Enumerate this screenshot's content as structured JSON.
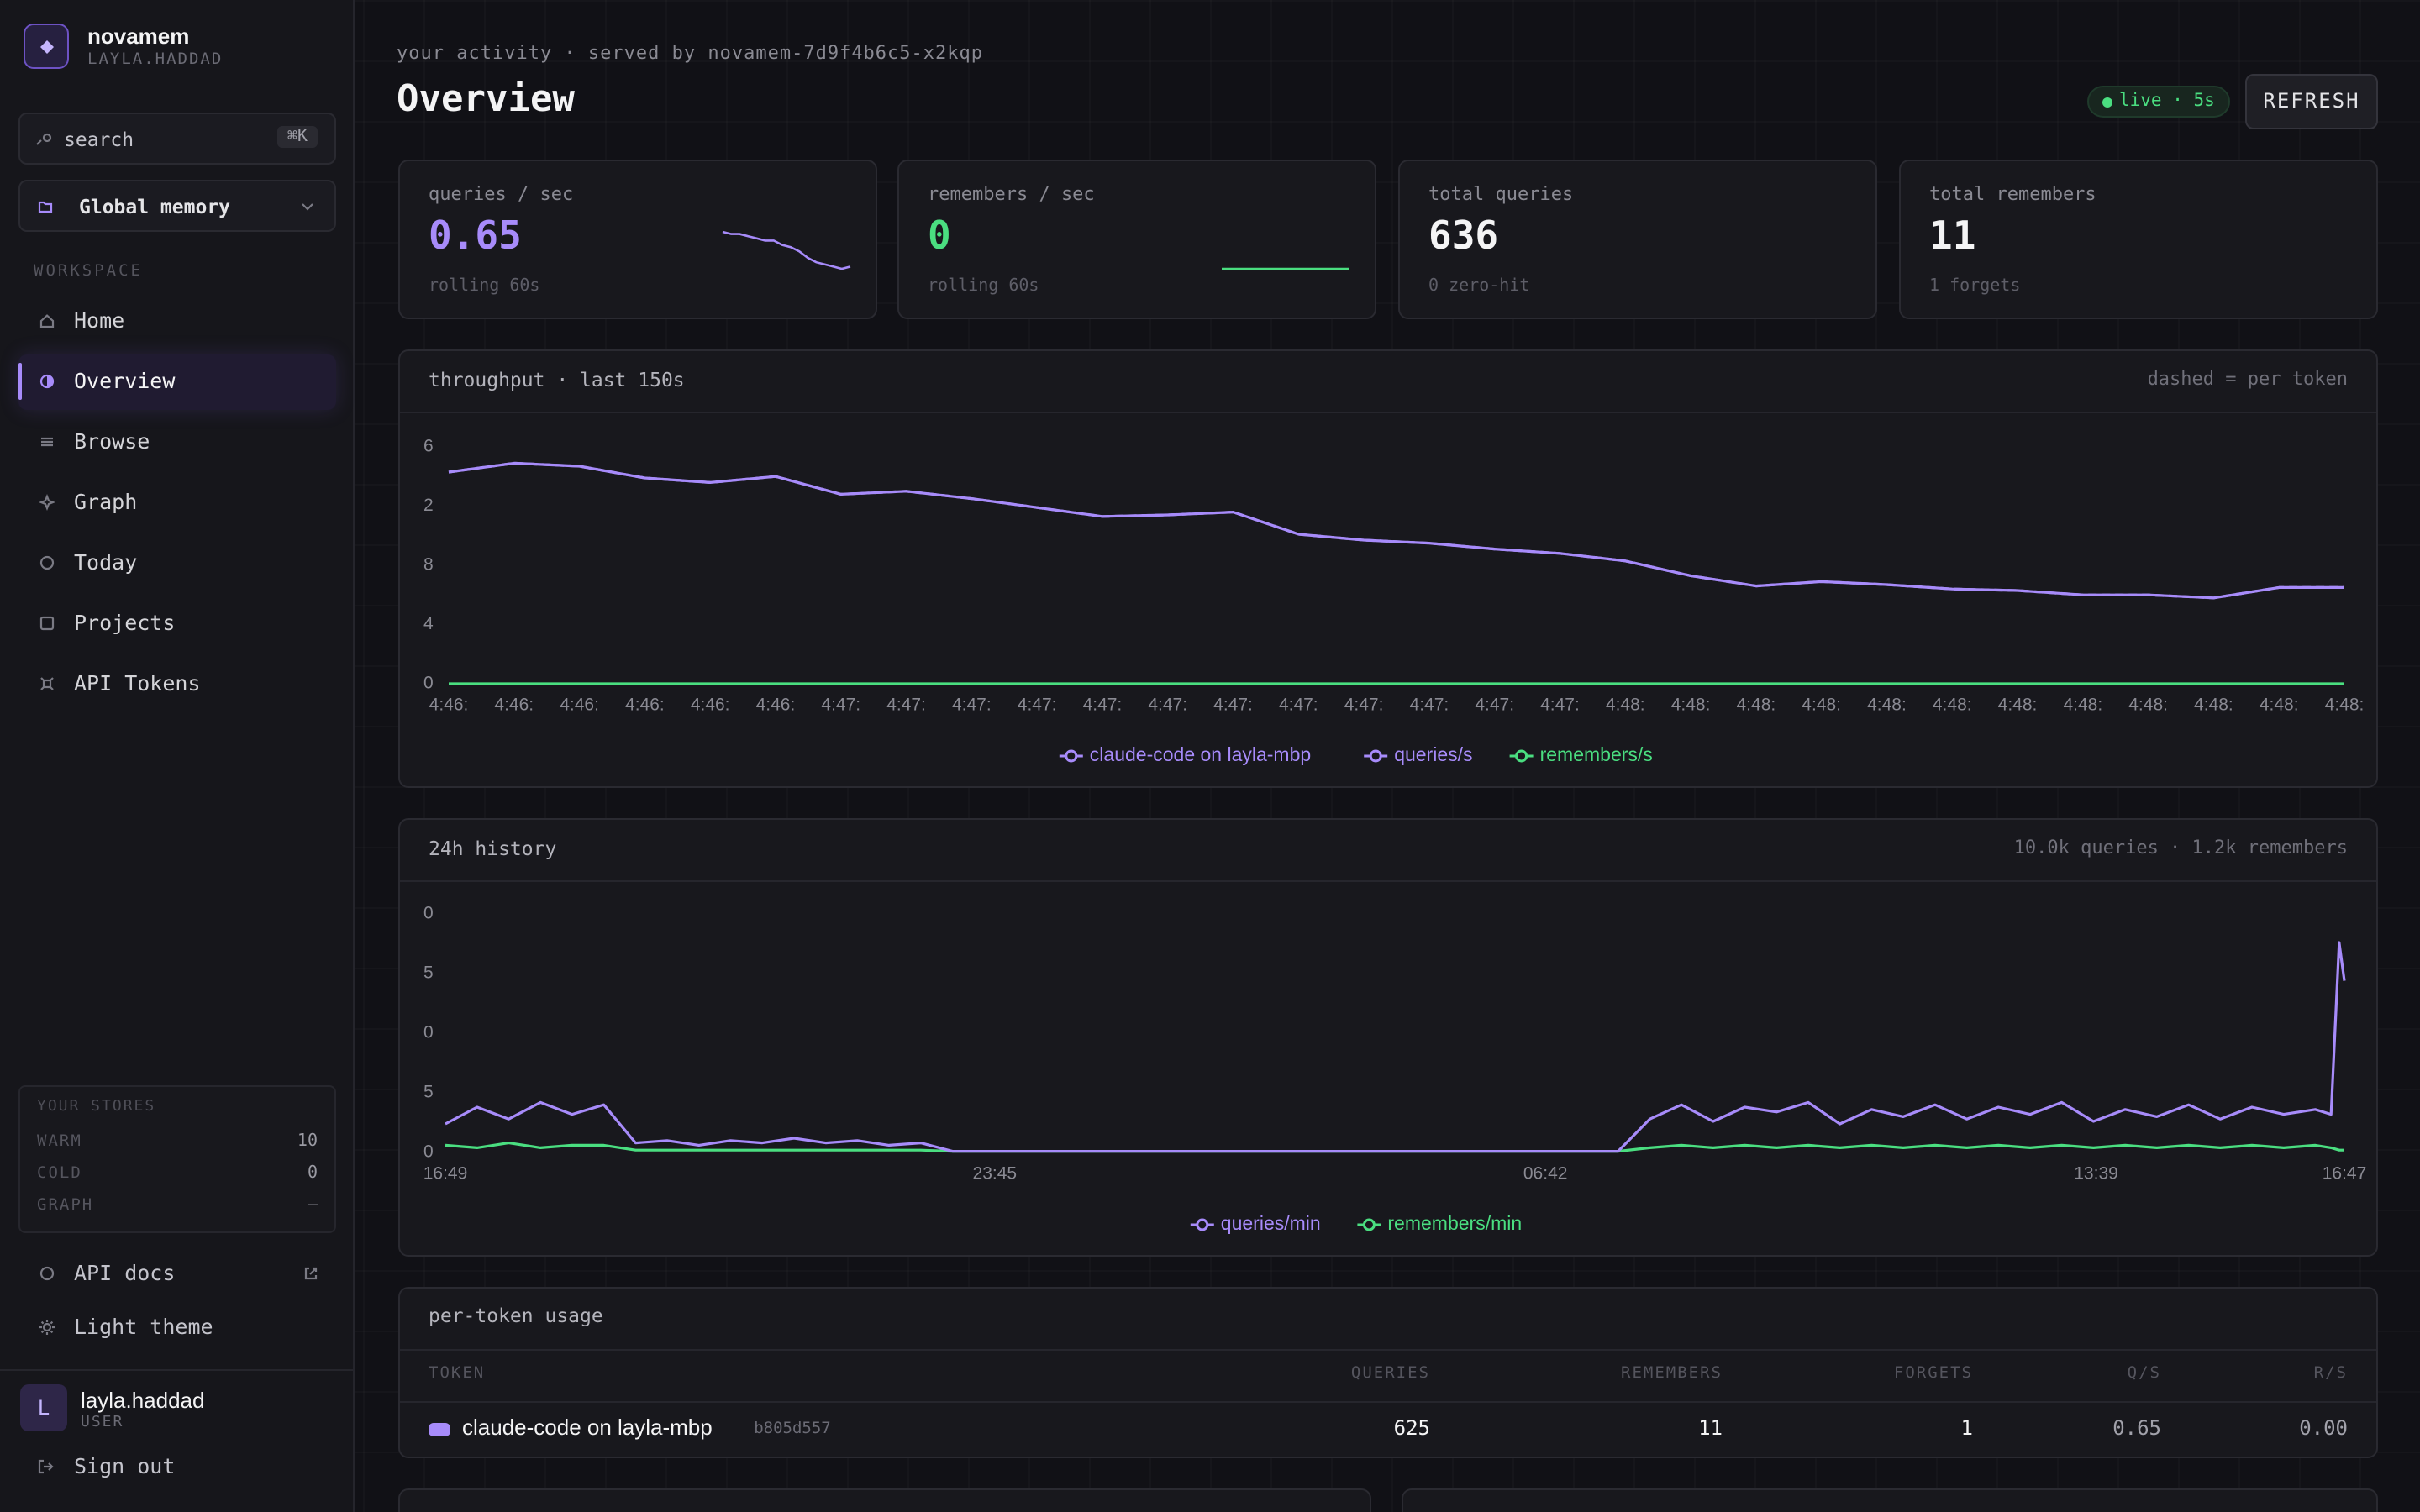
{
  "sidebar": {
    "brand": "novamem",
    "account": "LAYLA.HADDAD",
    "search": {
      "placeholder": "search",
      "shortcut": "⌘K"
    },
    "scope": "Global memory",
    "section": "WORKSPACE",
    "nav": [
      "Home",
      "Overview",
      "Browse",
      "Graph",
      "Today",
      "Projects",
      "API Tokens"
    ],
    "active": 1,
    "stores": {
      "title": "YOUR STORES",
      "rows": [
        {
          "label": "WARM",
          "value": 10
        },
        {
          "label": "COLD",
          "value": 0
        },
        {
          "label": "GRAPH",
          "value": "—"
        }
      ]
    },
    "links": [
      "API docs",
      "Light theme"
    ],
    "user": {
      "initial": "L",
      "name": "layla.haddad",
      "role": "USER"
    },
    "sign_out": "Sign out"
  },
  "header": {
    "context": "your activity · served by novamem-7d9f4b6c5-x2kqp",
    "title": "Overview",
    "live": "live · 5s",
    "refresh": "REFRESH"
  },
  "stats": [
    {
      "label": "queries / sec",
      "value": 0.65,
      "note": "rolling 60s",
      "color": "#a78bfa",
      "sparkline": [
        0.82,
        0.81,
        0.81,
        0.8,
        0.79,
        0.78,
        0.78,
        0.76,
        0.75,
        0.73,
        0.7,
        0.68,
        0.67,
        0.66,
        0.65,
        0.66
      ]
    },
    {
      "label": "remembers / sec",
      "value": 0,
      "note": "rolling 60s",
      "color": "#4ade80",
      "sparkline": [
        0,
        0,
        0,
        0,
        0,
        0,
        0,
        0,
        0,
        0,
        0,
        0,
        0,
        0,
        0,
        0
      ]
    },
    {
      "label": "total queries",
      "value": 636,
      "note": "0 zero-hit"
    },
    {
      "label": "total remembers",
      "value": 11,
      "note": "1 forgets"
    }
  ],
  "chart_data": [
    {
      "type": "line",
      "title": "throughput · last 150s",
      "note": "dashed = per token",
      "categories": [
        "4:46:",
        "4:46:",
        "4:46:",
        "4:46:",
        "4:46:",
        "4:46:",
        "4:47:",
        "4:47:",
        "4:47:",
        "4:47:",
        "4:47:",
        "4:47:",
        "4:47:",
        "4:47:",
        "4:47:",
        "4:47:",
        "4:47:",
        "4:47:",
        "4:48:",
        "4:48:",
        "4:48:",
        "4:48:",
        "4:48:",
        "4:48:",
        "4:48:",
        "4:48:",
        "4:48:",
        "4:48:",
        "4:48:",
        "4:48:"
      ],
      "series": [
        {
          "name": "claude-code on layla-mbp",
          "color": "#a78bfa",
          "dashed": true,
          "values": [
            14.3,
            14.9,
            14.7,
            13.9,
            13.6,
            14.0,
            12.8,
            13.0,
            12.5,
            11.9,
            11.3,
            11.4,
            11.6,
            10.1,
            9.7,
            9.5,
            9.1,
            8.8,
            8.3,
            7.3,
            6.6,
            6.9,
            6.7,
            6.4,
            6.3,
            6.0,
            6.0,
            5.8,
            6.5,
            6.5
          ]
        },
        {
          "name": "queries/s",
          "color": "#a78bfa",
          "values": [
            14.3,
            14.9,
            14.7,
            13.9,
            13.6,
            14.0,
            12.8,
            13.0,
            12.5,
            11.9,
            11.3,
            11.4,
            11.6,
            10.1,
            9.7,
            9.5,
            9.1,
            8.8,
            8.3,
            7.3,
            6.6,
            6.9,
            6.7,
            6.4,
            6.3,
            6.0,
            6.0,
            5.8,
            6.5,
            6.5
          ]
        },
        {
          "name": "remembers/s",
          "color": "#4ade80",
          "values": [
            0,
            0,
            0,
            0,
            0,
            0,
            0,
            0,
            0,
            0,
            0,
            0,
            0,
            0,
            0,
            0,
            0,
            0,
            0,
            0,
            0,
            0,
            0,
            0,
            0,
            0,
            0,
            0,
            0,
            0
          ]
        }
      ],
      "ylim": [
        0,
        16
      ],
      "yticks": [
        0,
        4,
        8,
        {
          "value": 12,
          "label": "2"
        },
        {
          "value": 16,
          "label": "6"
        }
      ]
    },
    {
      "type": "line",
      "title": "24h history",
      "note": "10.0k queries · 1.2k remembers",
      "x": [
        0,
        24,
        48,
        72,
        96,
        120,
        144,
        168,
        192,
        216,
        240,
        264,
        288,
        312,
        336,
        360,
        384,
        408,
        432,
        456,
        480,
        504,
        528,
        552,
        576,
        600,
        624,
        648,
        672,
        696,
        720,
        744,
        768,
        792,
        816,
        840,
        864,
        888,
        912,
        936,
        960,
        984,
        1008,
        1032,
        1056,
        1080,
        1104,
        1128,
        1152,
        1176,
        1200,
        1224,
        1248,
        1272,
        1296,
        1320,
        1344,
        1368,
        1392,
        1416,
        1428,
        1434,
        1438
      ],
      "series": [
        {
          "name": "queries/min",
          "color": "#a78bfa",
          "values": [
            12,
            19,
            14,
            21,
            16,
            20,
            4,
            5,
            3,
            5,
            4,
            6,
            4,
            5,
            3,
            4,
            0.5,
            0.5,
            0.5,
            0.5,
            0.5,
            0.5,
            0.5,
            0.5,
            0.5,
            0.5,
            0.5,
            0.5,
            0.5,
            0.5,
            0.5,
            0.5,
            0.5,
            0.5,
            0.5,
            0.5,
            0.5,
            0.5,
            14,
            20,
            13,
            19,
            17,
            21,
            12,
            18,
            15,
            20,
            14,
            19,
            16,
            21,
            13,
            18,
            15,
            20,
            14,
            19,
            16,
            18,
            16,
            88,
            72
          ]
        },
        {
          "name": "remembers/min",
          "color": "#4ade80",
          "values": [
            3,
            2,
            4,
            2,
            3,
            3,
            1,
            1,
            1,
            1,
            1,
            1,
            1,
            1,
            1,
            1,
            0.5,
            0.5,
            0.5,
            0.5,
            0.5,
            0.5,
            0.5,
            0.5,
            0.5,
            0.5,
            0.5,
            0.5,
            0.5,
            0.5,
            0.5,
            0.5,
            0.5,
            0.5,
            0.5,
            0.5,
            0.5,
            0.5,
            2,
            3,
            2,
            3,
            2,
            3,
            2,
            3,
            2,
            3,
            2,
            3,
            2,
            3,
            2,
            3,
            2,
            3,
            2,
            3,
            2,
            3,
            2,
            1,
            1
          ]
        }
      ],
      "xlim": [
        0,
        1438
      ],
      "xticks": [
        {
          "value": 0,
          "label": "16:49"
        },
        {
          "value": 416,
          "label": "23:45"
        },
        {
          "value": 833,
          "label": "06:42"
        },
        {
          "value": 1250,
          "label": "13:39"
        },
        {
          "value": 1438,
          "label": "16:47"
        }
      ],
      "ylim": [
        0,
        100
      ],
      "yticks": [
        0,
        {
          "value": 25,
          "label": "5"
        },
        {
          "value": 50,
          "label": "0"
        },
        {
          "value": 75,
          "label": "5"
        },
        {
          "value": 100,
          "label": "0"
        }
      ]
    }
  ],
  "table": {
    "title": "per-token usage",
    "columns": [
      "TOKEN",
      "QUERIES",
      "REMEMBERS",
      "FORGETS",
      "Q/S",
      "R/S"
    ],
    "rows": [
      {
        "color": "#a78bfa",
        "token": "claude-code on layla-mbp",
        "id": "b805d557",
        "cells": [
          625,
          11,
          1,
          0.65,
          "0.00"
        ]
      }
    ]
  }
}
